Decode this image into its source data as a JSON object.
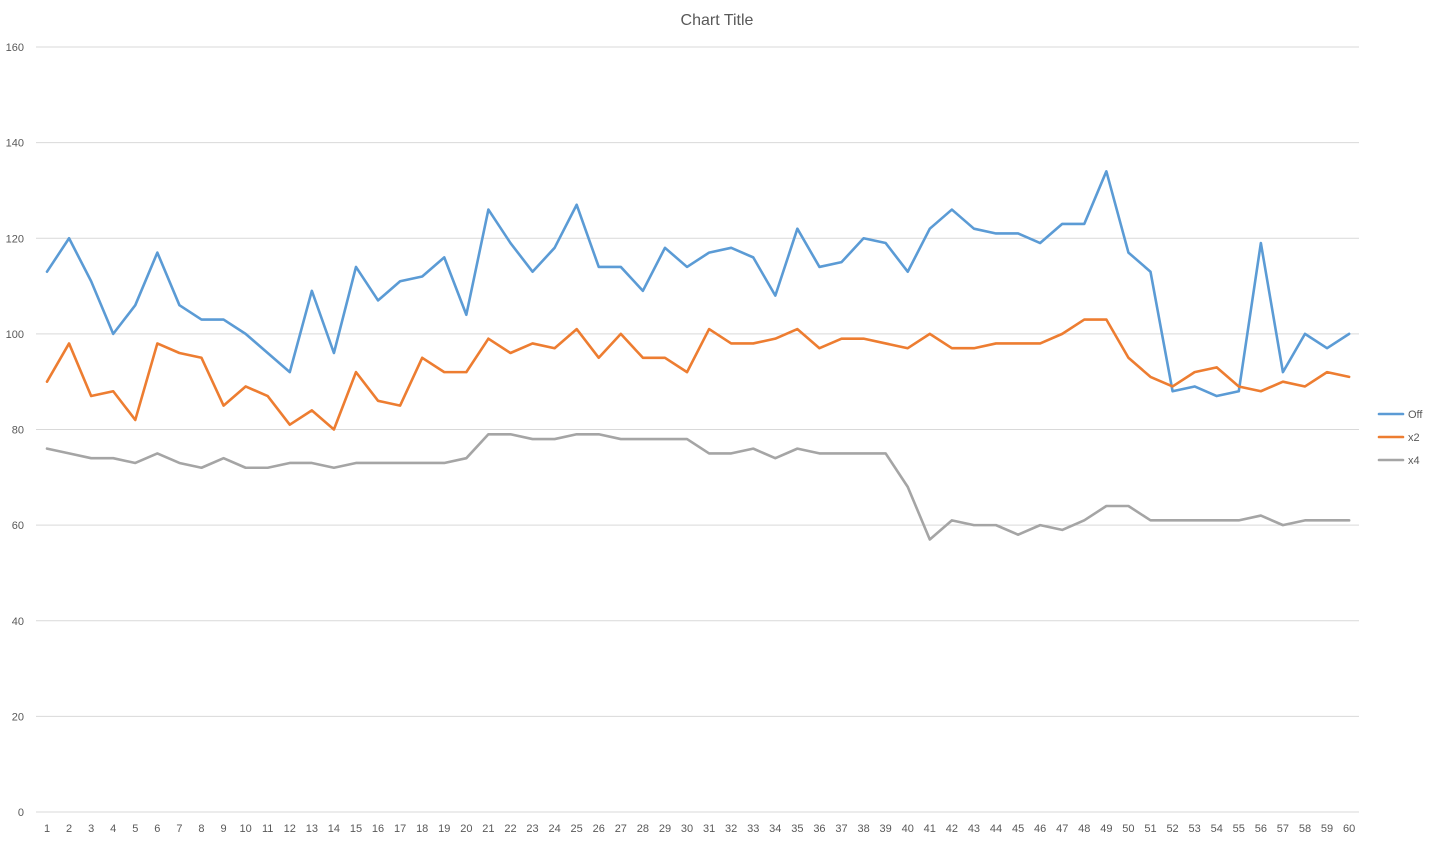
{
  "chart_data": {
    "type": "line",
    "title": "Chart Title",
    "xlabel": "",
    "ylabel": "",
    "ylim": [
      0,
      160
    ],
    "yticks": [
      0,
      20,
      40,
      60,
      80,
      100,
      120,
      140,
      160
    ],
    "grid": "horizontal",
    "legend_position": "right",
    "x": [
      1,
      2,
      3,
      4,
      5,
      6,
      7,
      8,
      9,
      10,
      11,
      12,
      13,
      14,
      15,
      16,
      17,
      18,
      19,
      20,
      21,
      22,
      23,
      24,
      25,
      26,
      27,
      28,
      29,
      30,
      31,
      32,
      33,
      34,
      35,
      36,
      37,
      38,
      39,
      40,
      41,
      42,
      43,
      44,
      45,
      46,
      47,
      48,
      49,
      50,
      51,
      52,
      53,
      54,
      55,
      56,
      57,
      58,
      59,
      60
    ],
    "series": [
      {
        "name": "Off",
        "color": "#5b9bd5",
        "values": [
          113,
          120,
          111,
          100,
          106,
          117,
          106,
          103,
          103,
          100,
          96,
          92,
          109,
          96,
          114,
          107,
          111,
          112,
          116,
          104,
          126,
          119,
          113,
          118,
          127,
          114,
          114,
          109,
          118,
          114,
          117,
          118,
          116,
          108,
          122,
          114,
          115,
          120,
          119,
          113,
          122,
          126,
          122,
          121,
          121,
          119,
          123,
          123,
          134,
          117,
          113,
          88,
          89,
          87,
          88,
          119,
          92,
          100,
          97,
          100
        ]
      },
      {
        "name": "x2",
        "color": "#ed7d31",
        "values": [
          90,
          98,
          87,
          88,
          82,
          98,
          96,
          95,
          85,
          89,
          87,
          81,
          84,
          80,
          92,
          86,
          85,
          95,
          92,
          92,
          99,
          96,
          98,
          97,
          101,
          95,
          100,
          95,
          95,
          92,
          101,
          98,
          98,
          99,
          101,
          97,
          99,
          99,
          98,
          97,
          100,
          97,
          97,
          98,
          98,
          98,
          100,
          103,
          103,
          95,
          91,
          89,
          92,
          93,
          89,
          88,
          90,
          89,
          92,
          91
        ]
      },
      {
        "name": "x4",
        "color": "#a5a5a5",
        "values": [
          76,
          75,
          74,
          74,
          73,
          75,
          73,
          72,
          74,
          72,
          72,
          73,
          73,
          72,
          73,
          73,
          73,
          73,
          73,
          74,
          79,
          79,
          78,
          78,
          79,
          79,
          78,
          78,
          78,
          78,
          75,
          75,
          76,
          74,
          76,
          75,
          75,
          75,
          75,
          68,
          57,
          61,
          60,
          60,
          58,
          60,
          59,
          61,
          64,
          64,
          61,
          61,
          61,
          61,
          61,
          62,
          60,
          61,
          61,
          61
        ]
      }
    ]
  }
}
